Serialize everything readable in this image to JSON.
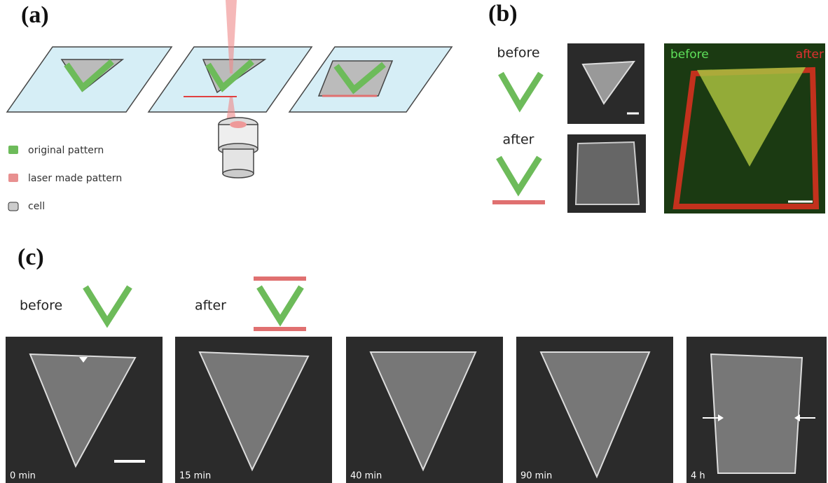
{
  "panels": {
    "a": {
      "label": "(a)",
      "legend": [
        "original pattern",
        "laser made pattern",
        "cell"
      ]
    },
    "b": {
      "label": "(b)",
      "before": "before",
      "after": "after",
      "overlay_before": "before",
      "overlay_after": "after"
    },
    "c": {
      "label": "(c)",
      "before": "before",
      "after": "after",
      "frames": [
        "0 min",
        "15 min",
        "40 min",
        "90 min",
        "4 h"
      ]
    }
  }
}
